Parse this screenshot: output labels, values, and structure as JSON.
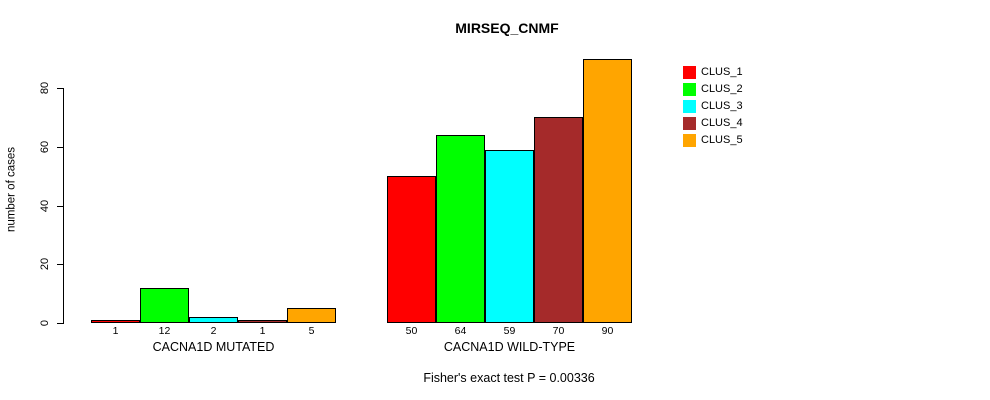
{
  "chart_data": {
    "type": "bar",
    "title": "MIRSEQ_CNMF",
    "xlabel": "",
    "ylabel": "number of cases",
    "ylim": [
      0,
      80
    ],
    "yticks": [
      0,
      20,
      40,
      60,
      80
    ],
    "grid": false,
    "legend_position": "right",
    "categories": [
      "CACNA1D MUTATED",
      "CACNA1D WILD-TYPE"
    ],
    "series": [
      {
        "name": "CLUS_1",
        "color": "#FF0000",
        "values": [
          1,
          50
        ]
      },
      {
        "name": "CLUS_2",
        "color": "#00FF00",
        "values": [
          12,
          64
        ]
      },
      {
        "name": "CLUS_3",
        "color": "#00FFFF",
        "values": [
          2,
          59
        ]
      },
      {
        "name": "CLUS_4",
        "color": "#A52A2A",
        "values": [
          1,
          70
        ]
      },
      {
        "name": "CLUS_5",
        "color": "#FFA500",
        "values": [
          5,
          90
        ]
      }
    ],
    "bar_value_labels": [
      [
        "1",
        "12",
        "2",
        "1",
        "5"
      ],
      [
        "50",
        "64",
        "59",
        "70",
        "90"
      ]
    ],
    "annotation": "Fisher's exact test P = 0.00336"
  }
}
